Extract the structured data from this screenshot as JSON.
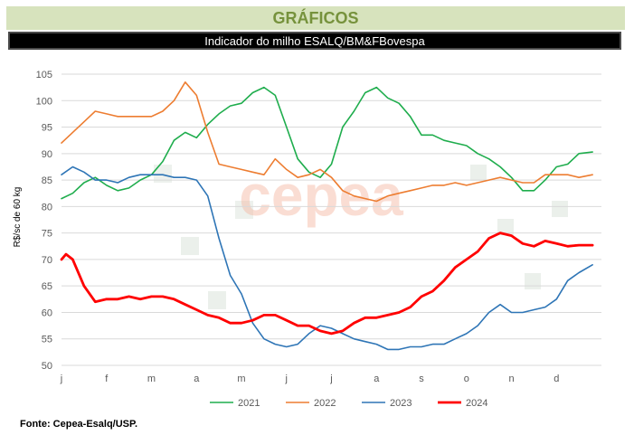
{
  "header": {
    "title": "GRÁFICOS",
    "subtitle": "Indicador do milho ESALQ/BM&FBovespa"
  },
  "watermark": "cepea",
  "footer": {
    "source": "Fonte: Cepea-Esalq/USP."
  },
  "colors": {
    "header_bg": "#d7e3bd",
    "header_text": "#76923c",
    "s2021": "#1fad4d",
    "s2022": "#ed7d31",
    "s2023": "#2e75b6",
    "s2024": "#ff0000"
  },
  "chart_data": {
    "type": "line",
    "title": "Indicador do milho ESALQ/BM&FBovespa",
    "xlabel": "",
    "ylabel": "R$/sc de 60 kg",
    "ylim": [
      50,
      105
    ],
    "yticks": [
      50,
      55,
      60,
      65,
      70,
      75,
      80,
      85,
      90,
      95,
      100,
      105
    ],
    "xlim": [
      0,
      12
    ],
    "month_ticks": [
      "j",
      "f",
      "m",
      "a",
      "m",
      "j",
      "j",
      "a",
      "s",
      "o",
      "n",
      "d"
    ],
    "legend_position": "bottom",
    "series": [
      {
        "name": "2021",
        "color": "#1fad4d",
        "width": 1.6,
        "x": [
          0,
          0.25,
          0.5,
          0.75,
          1,
          1.25,
          1.5,
          1.75,
          2,
          2.25,
          2.5,
          2.75,
          3,
          3.25,
          3.5,
          3.75,
          4,
          4.25,
          4.5,
          4.75,
          5,
          5.25,
          5.5,
          5.75,
          6,
          6.25,
          6.5,
          6.75,
          7,
          7.25,
          7.5,
          7.75,
          8,
          8.25,
          8.5,
          8.75,
          9,
          9.25,
          9.5,
          9.75,
          10,
          10.25,
          10.5,
          10.75,
          11,
          11.25,
          11.5,
          11.8
        ],
        "values": [
          81.5,
          82.5,
          84.5,
          85.5,
          84,
          83,
          83.5,
          85,
          86,
          88.5,
          92.5,
          94,
          93,
          95.5,
          97.5,
          99,
          99.5,
          101.5,
          102.5,
          101,
          95,
          89,
          86.5,
          85.5,
          88,
          95,
          98,
          101.5,
          102.5,
          100.5,
          99.5,
          97,
          93.5,
          93.5,
          92.5,
          92,
          91.5,
          90,
          89,
          87.5,
          85.5,
          83,
          83,
          85,
          87.5,
          88,
          90,
          90.3
        ]
      },
      {
        "name": "2022",
        "color": "#ed7d31",
        "width": 1.6,
        "x": [
          0,
          0.25,
          0.5,
          0.75,
          1,
          1.25,
          1.5,
          1.75,
          2,
          2.25,
          2.5,
          2.75,
          3,
          3.25,
          3.5,
          3.75,
          4,
          4.25,
          4.5,
          4.75,
          5,
          5.25,
          5.5,
          5.75,
          6,
          6.25,
          6.5,
          6.75,
          7,
          7.25,
          7.5,
          7.75,
          8,
          8.25,
          8.5,
          8.75,
          9,
          9.25,
          9.5,
          9.75,
          10,
          10.25,
          10.5,
          10.75,
          11,
          11.25,
          11.5,
          11.8
        ],
        "values": [
          92,
          94,
          96,
          98,
          97.5,
          97,
          97,
          97,
          97,
          98,
          100,
          103.5,
          101,
          94,
          88,
          87.5,
          87,
          86.5,
          86,
          89,
          87,
          85.5,
          86,
          87,
          85.5,
          83,
          82,
          81.5,
          81,
          82,
          82.5,
          83,
          83.5,
          84,
          84,
          84.5,
          84,
          84.5,
          85,
          85.5,
          85,
          84.5,
          84.5,
          86,
          86,
          86,
          85.5,
          86
        ]
      },
      {
        "name": "2023",
        "color": "#2e75b6",
        "width": 1.6,
        "x": [
          0,
          0.25,
          0.5,
          0.75,
          1,
          1.25,
          1.5,
          1.75,
          2,
          2.25,
          2.5,
          2.75,
          3,
          3.25,
          3.5,
          3.75,
          4,
          4.25,
          4.5,
          4.75,
          5,
          5.25,
          5.5,
          5.75,
          6,
          6.25,
          6.5,
          6.75,
          7,
          7.25,
          7.5,
          7.75,
          8,
          8.25,
          8.5,
          8.75,
          9,
          9.25,
          9.5,
          9.75,
          10,
          10.25,
          10.5,
          10.75,
          11,
          11.25,
          11.5,
          11.8
        ],
        "values": [
          86,
          87.5,
          86.5,
          85,
          85,
          84.5,
          85.5,
          86,
          86,
          86,
          85.5,
          85.5,
          85,
          82,
          74,
          67,
          63.5,
          58,
          55,
          54,
          53.5,
          54,
          56,
          57.5,
          57,
          56,
          55,
          54.5,
          54,
          53,
          53,
          53.5,
          53.5,
          54,
          54,
          55,
          56,
          57.5,
          60,
          61.5,
          60,
          60,
          60.5,
          61,
          62.5,
          66,
          67.5,
          69
        ]
      },
      {
        "name": "2024",
        "color": "#ff0000",
        "width": 2.8,
        "x": [
          0,
          0.1,
          0.25,
          0.5,
          0.75,
          1,
          1.25,
          1.5,
          1.75,
          2,
          2.25,
          2.5,
          2.75,
          3,
          3.25,
          3.5,
          3.75,
          4,
          4.25,
          4.5,
          4.75,
          5,
          5.25,
          5.5,
          5.75,
          6,
          6.25,
          6.5,
          6.75,
          7,
          7.25,
          7.5,
          7.75,
          8,
          8.25,
          8.5,
          8.75,
          9,
          9.25,
          9.5,
          9.75,
          10,
          10.25,
          10.5,
          10.75,
          11,
          11.25,
          11.5,
          11.8
        ],
        "values": [
          70,
          71,
          70,
          65,
          62,
          62.5,
          62.5,
          63,
          62.5,
          63,
          63,
          62.5,
          61.5,
          60.5,
          59.5,
          59,
          58,
          58,
          58.5,
          59.5,
          59.5,
          58.5,
          57.5,
          57.5,
          56.5,
          56,
          56.5,
          58,
          59,
          59,
          59.5,
          60,
          61,
          63,
          64,
          66,
          68.5,
          70,
          71.5,
          74,
          75,
          74.5,
          73,
          72.5,
          73.5,
          73,
          72.5,
          72.7,
          72.7
        ]
      }
    ]
  }
}
